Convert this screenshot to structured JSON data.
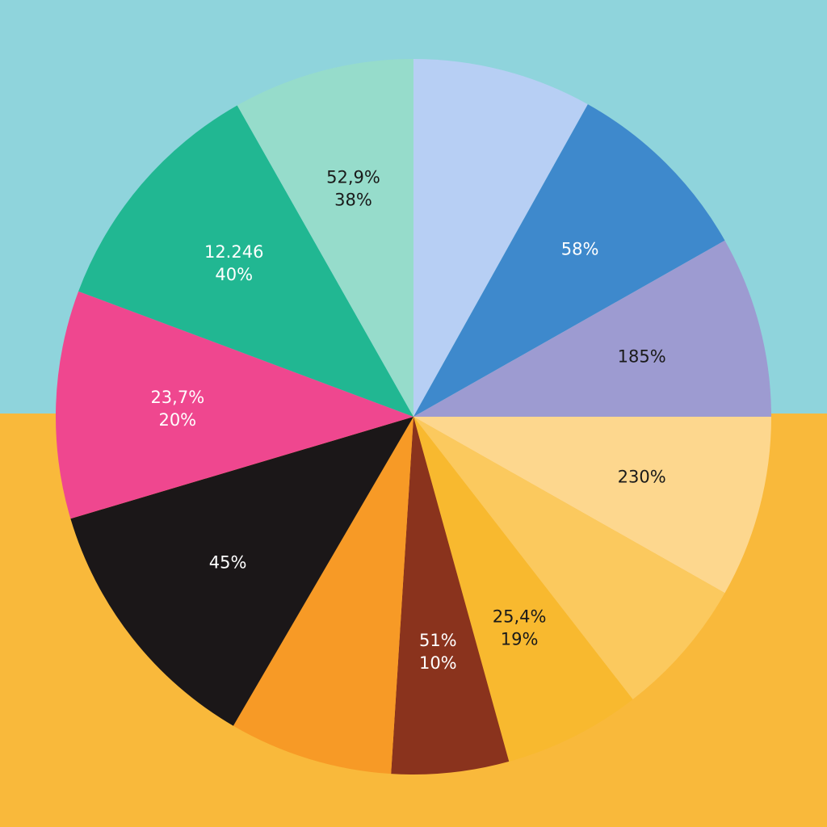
{
  "colors": {
    "background_top": "#8fd4dc",
    "background_bottom": "#f9b93b"
  },
  "chart_data": {
    "type": "pie",
    "title": "",
    "start_angle_deg": 0,
    "direction": "clockwise",
    "slices": [
      {
        "value": 8.1,
        "color": "#b7cff4",
        "label": []
      },
      {
        "value": 8.7,
        "color": "#3e89cc",
        "label": [
          "58%"
        ],
        "label_color": "#ffffff"
      },
      {
        "value": 8.2,
        "color": "#9d9bd1",
        "label": [
          "185%"
        ],
        "label_color": "#1a1a1a"
      },
      {
        "value": 8.2,
        "color": "#fdd78e",
        "label": [
          "230%"
        ],
        "label_color": "#1a1a1a"
      },
      {
        "value": 6.3,
        "color": "#fbc95e",
        "label": [],
        "label_color": "#1a1a1a"
      },
      {
        "value": 6.2,
        "color": "#f8b92f",
        "label": [
          "25,4%",
          "19%"
        ],
        "label_color": "#1a1a1a"
      },
      {
        "value": 5.3,
        "color": "#8a331d",
        "label": [
          "51%",
          "10%"
        ],
        "label_color": "#ffffff"
      },
      {
        "value": 7.4,
        "color": "#f79a26",
        "label": []
      },
      {
        "value": 12.0,
        "color": "#1b1718",
        "label": [
          "45%"
        ],
        "label_color": "#ffffff"
      },
      {
        "value": 10.3,
        "color": "#ef478f",
        "label": [
          "23,7%",
          "20%"
        ],
        "label_color": "#ffffff"
      },
      {
        "value": 11.1,
        "color": "#21b792",
        "label": [
          "12.246",
          "40%"
        ],
        "label_color": "#ffffff"
      },
      {
        "value": 8.2,
        "color": "#96dccb",
        "label": [
          "52,9%",
          "38%"
        ],
        "label_color": "#1a1a1a"
      }
    ]
  }
}
